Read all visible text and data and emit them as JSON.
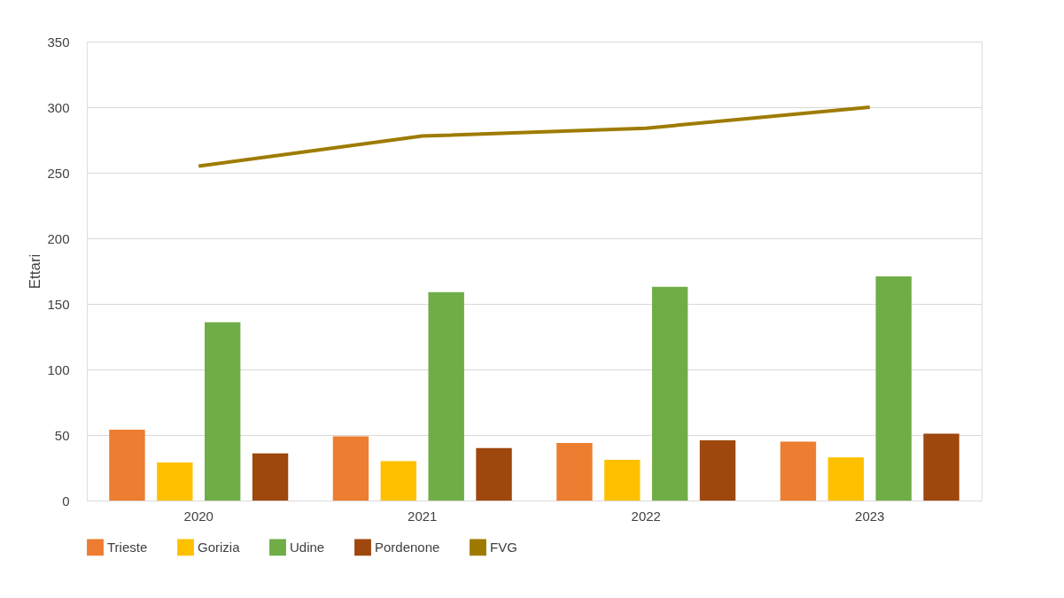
{
  "chart_data": {
    "type": "bar",
    "ylabel": "Ettari",
    "categories": [
      "2020",
      "2021",
      "2022",
      "2023"
    ],
    "series": [
      {
        "name": "Trieste",
        "color": "#ed7d31",
        "values": [
          54,
          49,
          44,
          45
        ]
      },
      {
        "name": "Gorizia",
        "color": "#ffc000",
        "values": [
          29,
          30,
          31,
          33
        ]
      },
      {
        "name": "Udine",
        "color": "#70ad47",
        "values": [
          136,
          159,
          163,
          171
        ]
      },
      {
        "name": "Pordenone",
        "color": "#9e480e",
        "values": [
          36,
          40,
          46,
          51
        ]
      },
      {
        "name": "FVG",
        "color": "#9e7b00",
        "type": "line",
        "values": [
          255,
          278,
          284,
          300
        ]
      }
    ],
    "ylim": [
      0,
      350
    ],
    "yticks": [
      0,
      50,
      100,
      150,
      200,
      250,
      300,
      350
    ],
    "grid": "y",
    "legend": "bottom"
  }
}
